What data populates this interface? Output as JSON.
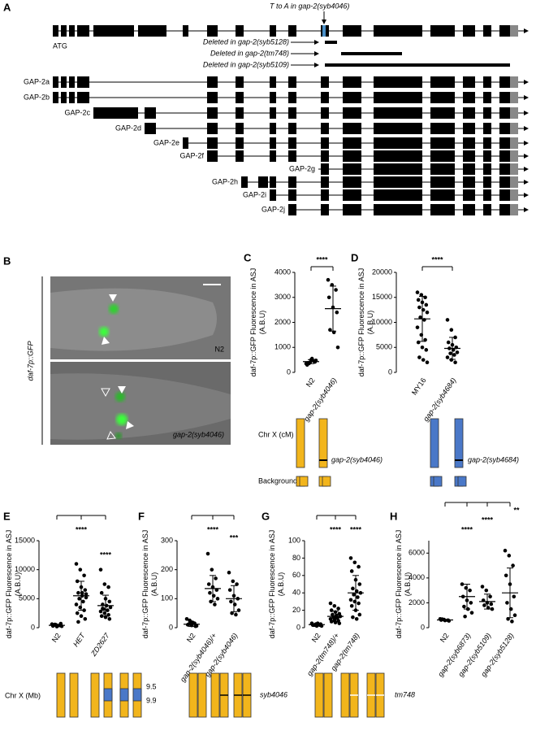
{
  "panel_labels": [
    "A",
    "B",
    "C",
    "D",
    "E",
    "F",
    "G",
    "H"
  ],
  "gene": {
    "annotation": "T to A in gap-2(syb4046)",
    "atg": "ATG",
    "deletions": [
      "Deleted in gap-2(syb5128)",
      "Deleted in gap-2(tm748)",
      "Deleted in gap-2(syb5109)"
    ],
    "isoforms": [
      "GAP-2a",
      "GAP-2b",
      "GAP-2c",
      "GAP-2d",
      "GAP-2e",
      "GAP-2f",
      "GAP-2g",
      "GAP-2h",
      "GAP-2i",
      "GAP-2j"
    ]
  },
  "image": {
    "reporter": "daf-7p::GFP",
    "top_label": "N2",
    "bottom_label": "gap-2(syb4046)"
  },
  "charts": [
    {
      "type": "dotplot",
      "ylabel": [
        "daf-7p::GFP Fluorescence in ASJ",
        "(A.B.U)"
      ],
      "ylim": [
        0,
        4000
      ],
      "yticks": [
        0,
        1000,
        2000,
        3000,
        4000
      ],
      "categories": [
        "N2",
        "gap-2(syb4046)"
      ],
      "significance": [
        "****"
      ],
      "groups": [
        {
          "points": [
            350,
            400,
            450,
            300,
            500,
            420,
            380,
            550,
            480,
            360
          ],
          "mean": 430,
          "sd": 80
        },
        {
          "points": [
            3700,
            3500,
            3300,
            3000,
            2600,
            2400,
            1700,
            1600,
            1000
          ],
          "mean": 2550,
          "sd": 900
        }
      ]
    },
    {
      "type": "dotplot",
      "ylabel": [
        "daf-7p::GFP Fluorescence in ASJ",
        "(A.B.U)"
      ],
      "ylim": [
        0,
        20000
      ],
      "yticks": [
        0,
        5000,
        10000,
        15000,
        20000
      ],
      "categories": [
        "MY16",
        "gap-2(syb4684)"
      ],
      "significance": [
        "****"
      ],
      "groups": [
        {
          "points": [
            16000,
            15500,
            15000,
            14500,
            14000,
            13500,
            13000,
            12500,
            12000,
            11000,
            10500,
            9000,
            7500,
            6500,
            6000,
            5000,
            4500,
            3000,
            2500,
            2000
          ],
          "mean": 10700,
          "sd": 4500
        },
        {
          "points": [
            10500,
            8500,
            7000,
            6000,
            5500,
            5000,
            4800,
            4500,
            4000,
            3800,
            3500,
            3000,
            2500,
            2000
          ],
          "mean": 4800,
          "sd": 2200
        }
      ]
    },
    {
      "type": "dotplot",
      "ylabel": [
        "daf-7p::GFP Fluorescence in ASJ",
        "(A.B.U)"
      ],
      "ylim": [
        0,
        15000
      ],
      "yticks": [
        0,
        5000,
        10000,
        15000
      ],
      "categories": [
        "N2",
        "HET",
        "ZD2627"
      ],
      "significance": [
        "****",
        "****"
      ],
      "groups": [
        {
          "points": [
            600,
            500,
            400,
            300,
            200,
            700,
            450,
            350,
            250,
            550
          ],
          "mean": 400,
          "sd": 150
        },
        {
          "points": [
            11000,
            10000,
            9000,
            8000,
            7000,
            6500,
            6000,
            5500,
            5200,
            5000,
            4500,
            4000,
            3500,
            3000,
            2500,
            2000,
            1500,
            1000,
            6000,
            5800
          ],
          "mean": 5500,
          "sd": 2500
        },
        {
          "points": [
            10000,
            7500,
            7000,
            6000,
            5000,
            4500,
            4000,
            3800,
            3500,
            3200,
            3000,
            2800,
            2500,
            2200,
            2000,
            1800,
            1500,
            3300
          ],
          "mean": 3800,
          "sd": 1800
        }
      ]
    },
    {
      "type": "dotplot",
      "ylabel": [
        "daf-7p::GFP Fluorescence in ASJ",
        "(A.B.U)"
      ],
      "ylim": [
        0,
        300
      ],
      "yticks": [
        0,
        100,
        200,
        300
      ],
      "categories": [
        "N2",
        "gap-2(syb4046)/+",
        "gap-2(syb4046)"
      ],
      "significance": [
        "****",
        "***"
      ],
      "groups": [
        {
          "points": [
            30,
            20,
            15,
            10,
            8,
            5,
            12,
            18,
            6,
            25
          ],
          "mean": 12,
          "sd": 8
        },
        {
          "points": [
            255,
            200,
            170,
            150,
            140,
            130,
            120,
            110,
            100,
            90,
            80
          ],
          "mean": 135,
          "sd": 45
        },
        {
          "points": [
            190,
            160,
            150,
            130,
            110,
            100,
            90,
            80,
            60,
            50,
            45
          ],
          "mean": 100,
          "sd": 45
        }
      ]
    },
    {
      "type": "dotplot",
      "ylabel": [
        "daf-7p::GFP Fluorescence in ASJ",
        "(A.B.U)"
      ],
      "ylim": [
        0,
        100
      ],
      "yticks": [
        0,
        20,
        40,
        60,
        80,
        100
      ],
      "categories": [
        "N2",
        "gap-2(tm748)/+",
        "gap-2(tm748)"
      ],
      "significance": [
        "****",
        "****"
      ],
      "groups": [
        {
          "points": [
            5,
            4,
            3,
            3,
            2,
            4,
            3,
            5,
            2,
            3
          ],
          "mean": 3.5,
          "sd": 1
        },
        {
          "points": [
            28,
            25,
            22,
            20,
            18,
            16,
            15,
            14,
            13,
            12,
            11,
            10,
            9,
            8,
            7,
            6,
            5
          ],
          "mean": 13,
          "sd": 6
        },
        {
          "points": [
            80,
            75,
            70,
            65,
            55,
            50,
            45,
            42,
            40,
            38,
            35,
            32,
            30,
            28,
            25,
            20,
            15,
            12,
            10
          ],
          "mean": 40,
          "sd": 20
        }
      ]
    },
    {
      "type": "dotplot",
      "ylabel": [
        "daf-7p::GFP Fluorescence in ASJ",
        "(A.B.U)"
      ],
      "ylim": [
        0,
        7000
      ],
      "yticks": [
        0,
        2000,
        4000,
        6000
      ],
      "categories": [
        "N2",
        "gap-2(syb6873)",
        "gap-2(syb5109)",
        "gap-2(syb5128)"
      ],
      "significance": [
        "****",
        "****",
        "**"
      ],
      "groups": [
        {
          "points": [
            700,
            650,
            600,
            620,
            580,
            550,
            680
          ],
          "mean": 620,
          "sd": 50
        },
        {
          "points": [
            3500,
            3200,
            3000,
            2500,
            2200,
            2000,
            1700,
            1500,
            1200,
            900
          ],
          "mean": 2500,
          "sd": 1000
        },
        {
          "points": [
            3300,
            3000,
            2500,
            2200,
            2000,
            1900,
            1800,
            1600,
            1500
          ],
          "mean": 2100,
          "sd": 600
        },
        {
          "points": [
            6200,
            5800,
            5000,
            4200,
            3500,
            2500,
            2000,
            1500,
            1000,
            700,
            500
          ],
          "mean": 2800,
          "sd": 2000
        }
      ]
    }
  ],
  "cartoons": {
    "chr_cm": "Chr X (cM)",
    "background": "Background",
    "allele_c": "gap-2(syb4046)",
    "allele_d": "gap-2(syb4684)",
    "chr_mb": "Chr X (Mb)",
    "mb": [
      9.5,
      9.9
    ],
    "allele_f": "syb4046",
    "allele_g": "tm748"
  }
}
